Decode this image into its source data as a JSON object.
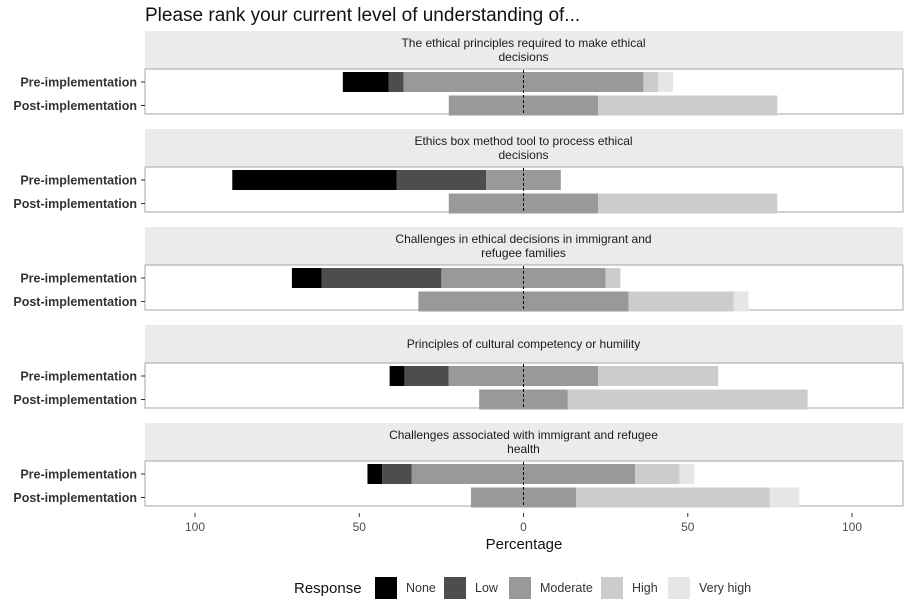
{
  "chart_data": {
    "type": "bar",
    "subtype": "diverging-stacked-horizontal",
    "title": "Please rank your current level of understanding of...",
    "xlabel": "Percentage",
    "xlim": [
      -115,
      115
    ],
    "xticks": [
      -100,
      -50,
      0,
      50,
      100
    ],
    "xtick_labels": [
      "100",
      "50",
      "0",
      "50",
      "100"
    ],
    "grid": false,
    "legend": {
      "title": "Response",
      "placement": "bottom",
      "entries": [
        {
          "name": "None",
          "color": "#000000"
        },
        {
          "name": "Low",
          "color": "#4d4d4d"
        },
        {
          "name": "Moderate",
          "color": "#999999"
        },
        {
          "name": "High",
          "color": "#cccccc"
        },
        {
          "name": "Very high",
          "color": "#e6e6e6"
        }
      ]
    },
    "panels": [
      {
        "title": "The ethical principles required to make ethical decisions",
        "title_lines": [
          "The ethical principles required to make ethical",
          "decisions"
        ],
        "rows": [
          {
            "label": "Pre-implementation",
            "None": 14,
            "Low": 4.5,
            "Moderate": 73,
            "High": 4.5,
            "Very high": 4.5
          },
          {
            "label": "Post-implementation",
            "None": 0,
            "Low": 0,
            "Moderate": 45.5,
            "High": 54.5,
            "Very high": 0
          }
        ]
      },
      {
        "title": "Ethics box method tool to process ethical decisions",
        "title_lines": [
          "Ethics box method tool to process ethical",
          "decisions"
        ],
        "rows": [
          {
            "label": "Pre-implementation",
            "None": 50,
            "Low": 27.3,
            "Moderate": 22.7,
            "High": 0,
            "Very high": 0
          },
          {
            "label": "Post-implementation",
            "None": 0,
            "Low": 0,
            "Moderate": 45.5,
            "High": 54.5,
            "Very high": 0
          }
        ]
      },
      {
        "title": "Challenges in ethical decisions in immigrant and refugee families",
        "title_lines": [
          "Challenges in ethical decisions in immigrant and",
          "refugee families"
        ],
        "rows": [
          {
            "label": "Pre-implementation",
            "None": 9,
            "Low": 36.5,
            "Moderate": 50,
            "High": 4.5,
            "Very high": 0
          },
          {
            "label": "Post-implementation",
            "None": 0,
            "Low": 0,
            "Moderate": 64,
            "High": 32,
            "Very high": 4.5
          }
        ]
      },
      {
        "title": "Principles of cultural competency or humility",
        "title_lines": [
          "Principles of cultural competency or humility"
        ],
        "rows": [
          {
            "label": "Pre-implementation",
            "None": 4.5,
            "Low": 13.5,
            "Moderate": 45.5,
            "High": 36.5,
            "Very high": 0
          },
          {
            "label": "Post-implementation",
            "None": 0,
            "Low": 0,
            "Moderate": 27,
            "High": 73,
            "Very high": 0
          }
        ]
      },
      {
        "title": "Challenges associated with immigrant and refugee health",
        "title_lines": [
          "Challenges associated with immigrant and refugee",
          "health"
        ],
        "rows": [
          {
            "label": "Pre-implementation",
            "None": 4.5,
            "Low": 9,
            "Moderate": 68,
            "High": 13.5,
            "Very high": 4.5
          },
          {
            "label": "Post-implementation",
            "None": 0,
            "Low": 0,
            "Moderate": 32,
            "High": 59,
            "Very high": 9
          }
        ]
      }
    ]
  }
}
